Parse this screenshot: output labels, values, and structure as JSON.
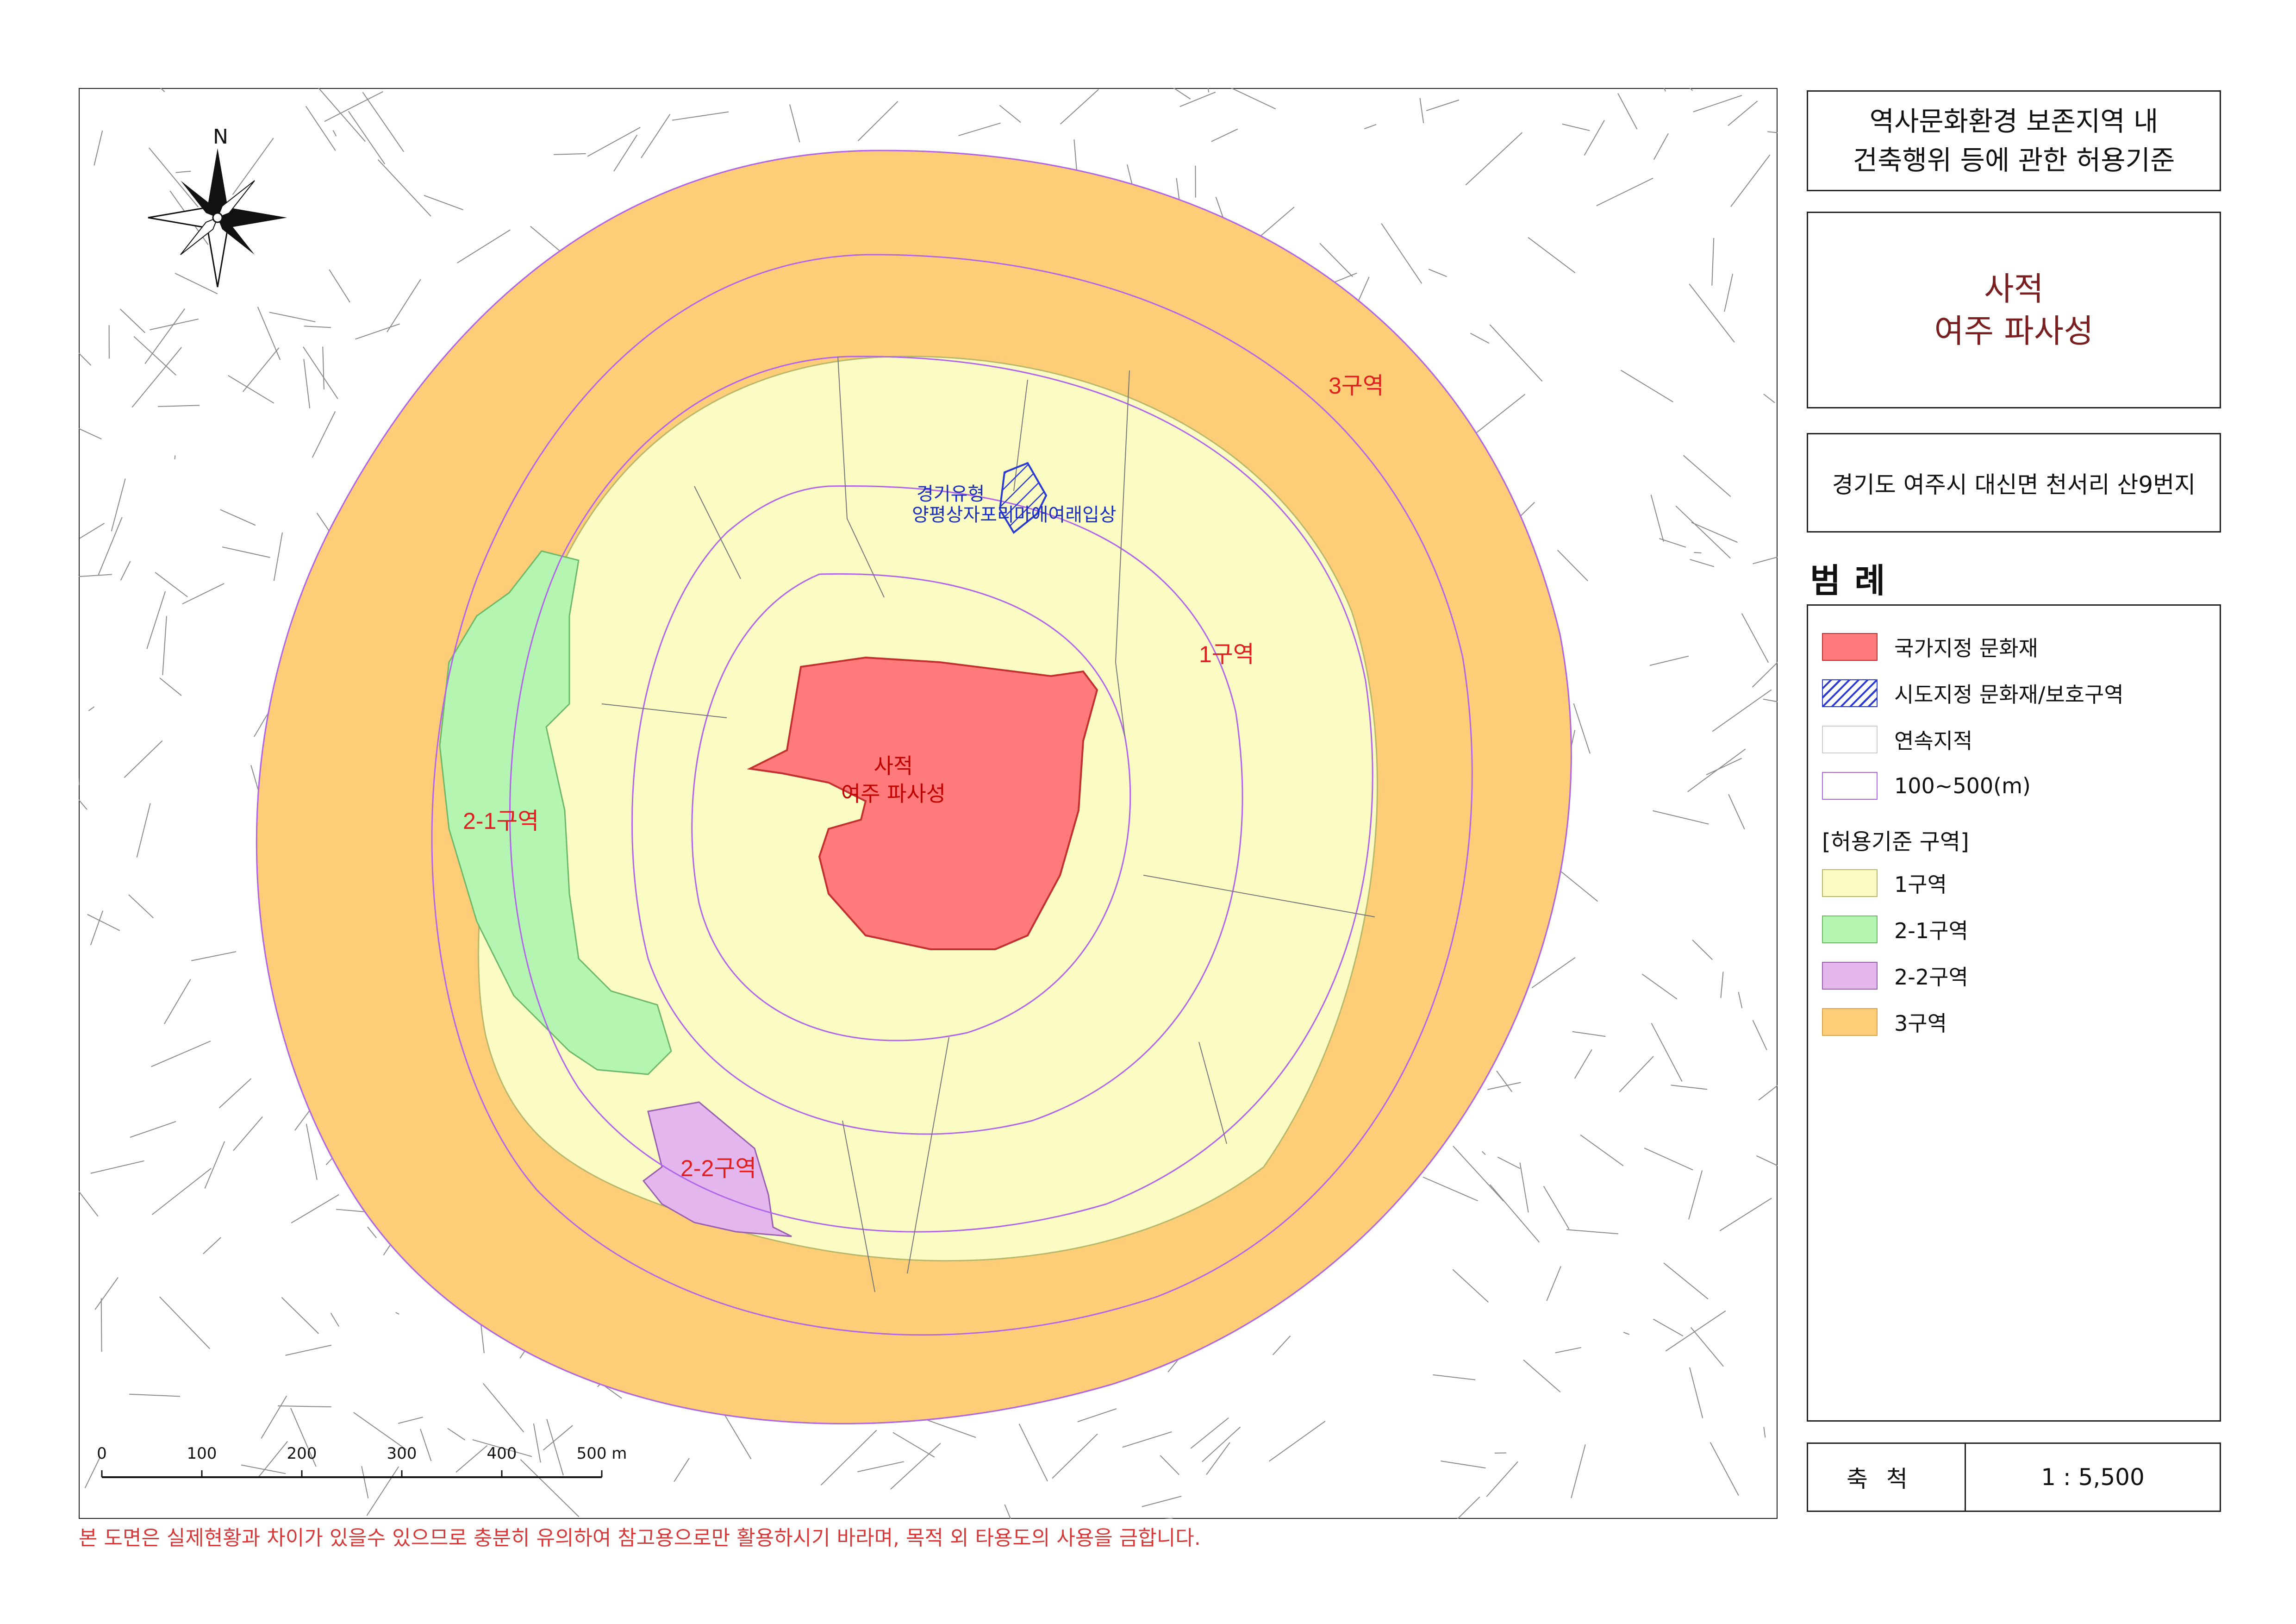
{
  "header": {
    "title_line1": "역사문화환경 보존지역 내",
    "title_line2": "건축행위 등에 관한 허용기준"
  },
  "site": {
    "line1": "사적",
    "line2": "여주 파사성"
  },
  "address": "경기도 여주시 대신면 천서리 산9번지",
  "legend": {
    "title": "범례",
    "items": [
      {
        "label": "국가지정 문화재",
        "color": "#ff7b7b"
      },
      {
        "label": "시도지정 문화재/보호구역",
        "color": "#2b3bd1"
      },
      {
        "label": "연속지적",
        "color": "#cccccc"
      },
      {
        "label": "100~500(m)",
        "color": "#b166e8"
      }
    ],
    "zones_title": "[허용기준 구역]",
    "zones": [
      {
        "label": "1구역",
        "color": "#fbfbc4"
      },
      {
        "label": "2-1구역",
        "color": "#b4f5b1"
      },
      {
        "label": "2-2구역",
        "color": "#e4b6ee"
      },
      {
        "label": "3구역",
        "color": "#fdcd78"
      }
    ]
  },
  "scale": {
    "label": "축척",
    "value": "1 : 5,500"
  },
  "map": {
    "north": "N",
    "zone_labels": {
      "zone1": "1구역",
      "zone21": "2-1구역",
      "zone22": "2-2구역",
      "zone3": "3구역"
    },
    "heritage_label_line1": "사적",
    "heritage_label_line2": "여주 파사성",
    "provincial_label_line1": "경기유형",
    "provincial_label_line2": "양평상자포리마애여래입상",
    "scalebar_ticks": [
      "0",
      "100",
      "200",
      "300",
      "400",
      "500 m"
    ]
  },
  "disclaimer": "본 도면은 실제현황과 차이가 있을수 있으므로 충분히 유의하여 참고용으로만 활용하시기 바라며, 목적 외 타용도의 사용을 금합니다."
}
